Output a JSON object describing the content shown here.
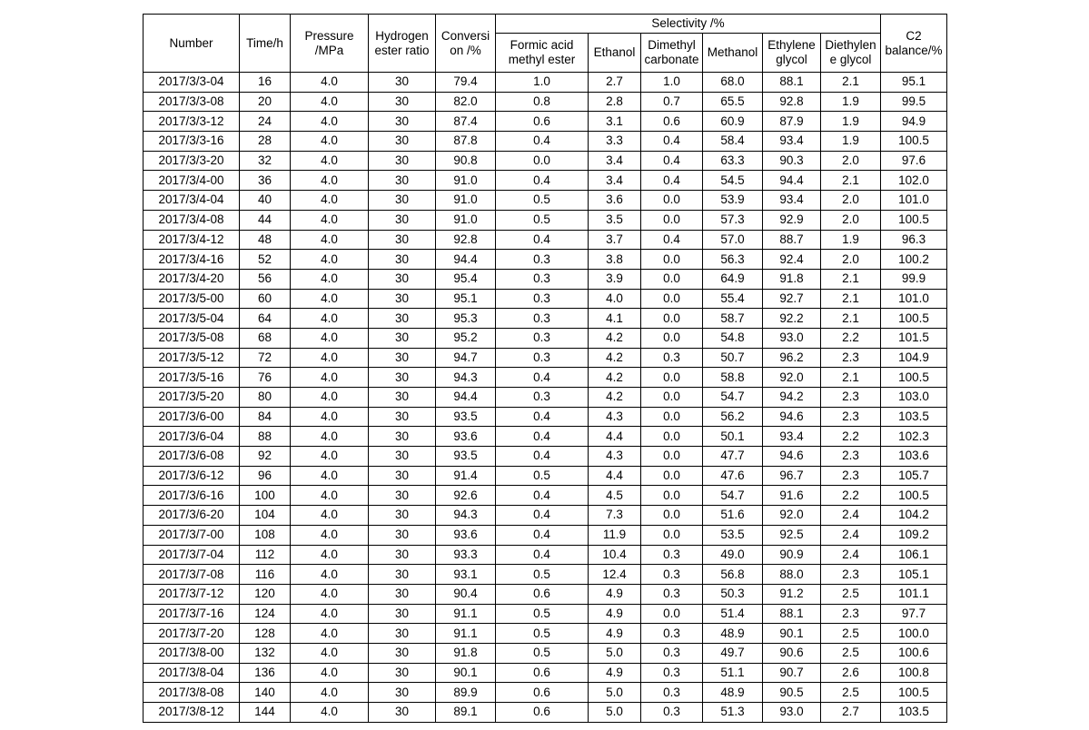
{
  "table": {
    "headers": {
      "number": "Number",
      "time": "Time/h",
      "pressure": "Pressure /MPa",
      "hydrogen_ester_ratio": "Hydrogen ester ratio",
      "conversion": "Conversi on /%",
      "selectivity_group": "Selectivity /%",
      "formic_acid_methyl_ester": "Formic acid methyl ester",
      "ethanol": "Ethanol",
      "dimethyl_carbonate": "Dimethyl carbonate",
      "methanol": "Methanol",
      "ethylene_glycol": "Ethylene glycol",
      "diethylene_glycol": "Diethylen e glycol",
      "c2_balance": "C2 balance/%"
    },
    "rows": [
      [
        "2017/3/3-04",
        "16",
        "4.0",
        "30",
        "79.4",
        "1.0",
        "2.7",
        "1.0",
        "68.0",
        "88.1",
        "2.1",
        "95.1"
      ],
      [
        "2017/3/3-08",
        "20",
        "4.0",
        "30",
        "82.0",
        "0.8",
        "2.8",
        "0.7",
        "65.5",
        "92.8",
        "1.9",
        "99.5"
      ],
      [
        "2017/3/3-12",
        "24",
        "4.0",
        "30",
        "87.4",
        "0.6",
        "3.1",
        "0.6",
        "60.9",
        "87.9",
        "1.9",
        "94.9"
      ],
      [
        "2017/3/3-16",
        "28",
        "4.0",
        "30",
        "87.8",
        "0.4",
        "3.3",
        "0.4",
        "58.4",
        "93.4",
        "1.9",
        "100.5"
      ],
      [
        "2017/3/3-20",
        "32",
        "4.0",
        "30",
        "90.8",
        "0.0",
        "3.4",
        "0.4",
        "63.3",
        "90.3",
        "2.0",
        "97.6"
      ],
      [
        "2017/3/4-00",
        "36",
        "4.0",
        "30",
        "91.0",
        "0.4",
        "3.4",
        "0.4",
        "54.5",
        "94.4",
        "2.1",
        "102.0"
      ],
      [
        "2017/3/4-04",
        "40",
        "4.0",
        "30",
        "91.0",
        "0.5",
        "3.6",
        "0.0",
        "53.9",
        "93.4",
        "2.0",
        "101.0"
      ],
      [
        "2017/3/4-08",
        "44",
        "4.0",
        "30",
        "91.0",
        "0.5",
        "3.5",
        "0.0",
        "57.3",
        "92.9",
        "2.0",
        "100.5"
      ],
      [
        "2017/3/4-12",
        "48",
        "4.0",
        "30",
        "92.8",
        "0.4",
        "3.7",
        "0.4",
        "57.0",
        "88.7",
        "1.9",
        "96.3"
      ],
      [
        "2017/3/4-16",
        "52",
        "4.0",
        "30",
        "94.4",
        "0.3",
        "3.8",
        "0.0",
        "56.3",
        "92.4",
        "2.0",
        "100.2"
      ],
      [
        "2017/3/4-20",
        "56",
        "4.0",
        "30",
        "95.4",
        "0.3",
        "3.9",
        "0.0",
        "64.9",
        "91.8",
        "2.1",
        "99.9"
      ],
      [
        "2017/3/5-00",
        "60",
        "4.0",
        "30",
        "95.1",
        "0.3",
        "4.0",
        "0.0",
        "55.4",
        "92.7",
        "2.1",
        "101.0"
      ],
      [
        "2017/3/5-04",
        "64",
        "4.0",
        "30",
        "95.3",
        "0.3",
        "4.1",
        "0.0",
        "58.7",
        "92.2",
        "2.1",
        "100.5"
      ],
      [
        "2017/3/5-08",
        "68",
        "4.0",
        "30",
        "95.2",
        "0.3",
        "4.2",
        "0.0",
        "54.8",
        "93.0",
        "2.2",
        "101.5"
      ],
      [
        "2017/3/5-12",
        "72",
        "4.0",
        "30",
        "94.7",
        "0.3",
        "4.2",
        "0.3",
        "50.7",
        "96.2",
        "2.3",
        "104.9"
      ],
      [
        "2017/3/5-16",
        "76",
        "4.0",
        "30",
        "94.3",
        "0.4",
        "4.2",
        "0.0",
        "58.8",
        "92.0",
        "2.1",
        "100.5"
      ],
      [
        "2017/3/5-20",
        "80",
        "4.0",
        "30",
        "94.4",
        "0.3",
        "4.2",
        "0.0",
        "54.7",
        "94.2",
        "2.3",
        "103.0"
      ],
      [
        "2017/3/6-00",
        "84",
        "4.0",
        "30",
        "93.5",
        "0.4",
        "4.3",
        "0.0",
        "56.2",
        "94.6",
        "2.3",
        "103.5"
      ],
      [
        "2017/3/6-04",
        "88",
        "4.0",
        "30",
        "93.6",
        "0.4",
        "4.4",
        "0.0",
        "50.1",
        "93.4",
        "2.2",
        "102.3"
      ],
      [
        "2017/3/6-08",
        "92",
        "4.0",
        "30",
        "93.5",
        "0.4",
        "4.3",
        "0.0",
        "47.7",
        "94.6",
        "2.3",
        "103.6"
      ],
      [
        "2017/3/6-12",
        "96",
        "4.0",
        "30",
        "91.4",
        "0.5",
        "4.4",
        "0.0",
        "47.6",
        "96.7",
        "2.3",
        "105.7"
      ],
      [
        "2017/3/6-16",
        "100",
        "4.0",
        "30",
        "92.6",
        "0.4",
        "4.5",
        "0.0",
        "54.7",
        "91.6",
        "2.2",
        "100.5"
      ],
      [
        "2017/3/6-20",
        "104",
        "4.0",
        "30",
        "94.3",
        "0.4",
        "7.3",
        "0.0",
        "51.6",
        "92.0",
        "2.4",
        "104.2"
      ],
      [
        "2017/3/7-00",
        "108",
        "4.0",
        "30",
        "93.6",
        "0.4",
        "11.9",
        "0.0",
        "53.5",
        "92.5",
        "2.4",
        "109.2"
      ],
      [
        "2017/3/7-04",
        "112",
        "4.0",
        "30",
        "93.3",
        "0.4",
        "10.4",
        "0.3",
        "49.0",
        "90.9",
        "2.4",
        "106.1"
      ],
      [
        "2017/3/7-08",
        "116",
        "4.0",
        "30",
        "93.1",
        "0.5",
        "12.4",
        "0.3",
        "56.8",
        "88.0",
        "2.3",
        "105.1"
      ],
      [
        "2017/3/7-12",
        "120",
        "4.0",
        "30",
        "90.4",
        "0.6",
        "4.9",
        "0.3",
        "50.3",
        "91.2",
        "2.5",
        "101.1"
      ],
      [
        "2017/3/7-16",
        "124",
        "4.0",
        "30",
        "91.1",
        "0.5",
        "4.9",
        "0.0",
        "51.4",
        "88.1",
        "2.3",
        "97.7"
      ],
      [
        "2017/3/7-20",
        "128",
        "4.0",
        "30",
        "91.1",
        "0.5",
        "4.9",
        "0.3",
        "48.9",
        "90.1",
        "2.5",
        "100.0"
      ],
      [
        "2017/3/8-00",
        "132",
        "4.0",
        "30",
        "91.8",
        "0.5",
        "5.0",
        "0.3",
        "49.7",
        "90.6",
        "2.5",
        "100.6"
      ],
      [
        "2017/3/8-04",
        "136",
        "4.0",
        "30",
        "90.1",
        "0.6",
        "4.9",
        "0.3",
        "51.1",
        "90.7",
        "2.6",
        "100.8"
      ],
      [
        "2017/3/8-08",
        "140",
        "4.0",
        "30",
        "89.9",
        "0.6",
        "5.0",
        "0.3",
        "48.9",
        "90.5",
        "2.5",
        "100.5"
      ],
      [
        "2017/3/8-12",
        "144",
        "4.0",
        "30",
        "89.1",
        "0.6",
        "5.0",
        "0.3",
        "51.3",
        "93.0",
        "2.7",
        "103.5"
      ]
    ]
  }
}
